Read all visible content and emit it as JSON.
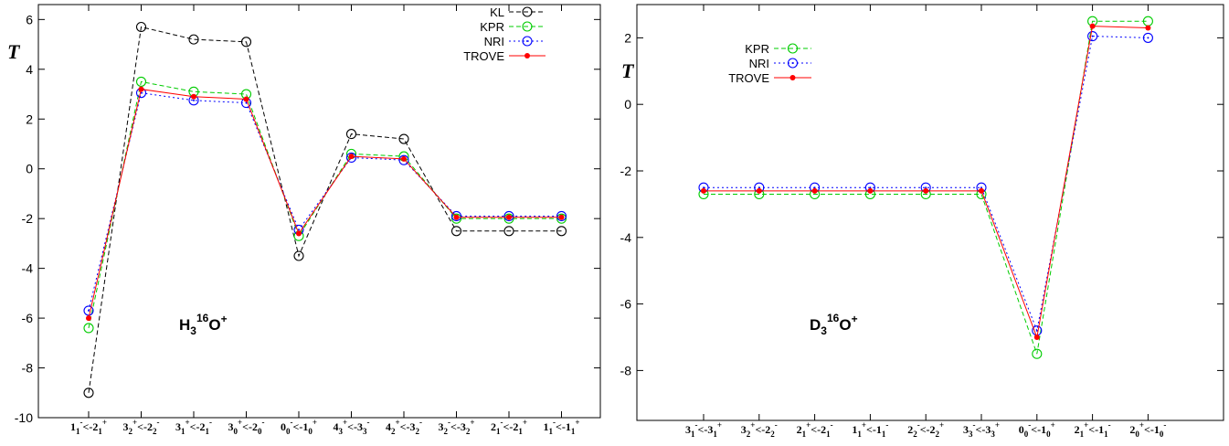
{
  "chart_data": [
    {
      "type": "line",
      "ylabel": "T",
      "annotation": {
        "base": "H",
        "sub": "3",
        "sup": "16",
        "rest": "O",
        "sup2": "+"
      },
      "ylim": [
        -10,
        6.6
      ],
      "yticks": [
        -10,
        -8,
        -6,
        -4,
        -2,
        0,
        2,
        4,
        6
      ],
      "grid": false,
      "legend_position": "top-right",
      "categories": [
        {
          "a": "1",
          "as": "-",
          "ab": "1",
          "mid": "<-",
          "b": "2",
          "bs": "+",
          "bb": "1"
        },
        {
          "a": "3",
          "as": "+",
          "ab": "2",
          "mid": "<-",
          "b": "2",
          "bs": "-",
          "bb": "2"
        },
        {
          "a": "3",
          "as": "+",
          "ab": "1",
          "mid": "<-",
          "b": "2",
          "bs": "-",
          "bb": "1"
        },
        {
          "a": "3",
          "as": "+",
          "ab": "0",
          "mid": "<-",
          "b": "2",
          "bs": "-",
          "bb": "0"
        },
        {
          "a": "0",
          "as": "-",
          "ab": "0",
          "mid": "<-",
          "b": "1",
          "bs": "+",
          "bb": "0"
        },
        {
          "a": "4",
          "as": "+",
          "ab": "3",
          "mid": "<-",
          "b": "3",
          "bs": "-",
          "bb": "3"
        },
        {
          "a": "4",
          "as": "+",
          "ab": "2",
          "mid": "<-",
          "b": "3",
          "bs": "-",
          "bb": "2"
        },
        {
          "a": "3",
          "as": "-",
          "ab": "2",
          "mid": "<-",
          "b": "3",
          "bs": "+",
          "bb": "2"
        },
        {
          "a": "2",
          "as": "-",
          "ab": "1",
          "mid": "<-",
          "b": "2",
          "bs": "+",
          "bb": "1"
        },
        {
          "a": "1",
          "as": "-",
          "ab": "1",
          "mid": "<-",
          "b": "1",
          "bs": "+",
          "bb": "1"
        }
      ],
      "series": [
        {
          "name": "KL",
          "color": "#000000",
          "style": "dashed",
          "marker": "circle",
          "values": [
            -9.0,
            5.7,
            5.2,
            5.1,
            -3.5,
            1.4,
            1.2,
            -2.5,
            -2.5,
            -2.5
          ]
        },
        {
          "name": "KPR",
          "color": "#00cc00",
          "style": "dashed",
          "marker": "circle",
          "values": [
            -6.4,
            3.5,
            3.1,
            3.0,
            -2.7,
            0.6,
            0.5,
            -2.0,
            -2.0,
            -2.0
          ]
        },
        {
          "name": "NRI",
          "color": "#0000ff",
          "style": "dotted",
          "marker": "circle-dot",
          "values": [
            -5.7,
            3.05,
            2.75,
            2.65,
            -2.45,
            0.45,
            0.35,
            -1.9,
            -1.9,
            -1.9
          ]
        },
        {
          "name": "TROVE",
          "color": "#ff0000",
          "style": "solid",
          "marker": "dot",
          "values": [
            -6.0,
            3.2,
            2.9,
            2.8,
            -2.6,
            0.5,
            0.4,
            -1.95,
            -1.95,
            -1.95
          ]
        }
      ]
    },
    {
      "type": "line",
      "ylabel": "T",
      "annotation": {
        "base": "D",
        "sub": "3",
        "sup": "16",
        "rest": "O",
        "sup2": "+"
      },
      "ylim": [
        -9.5,
        3.0
      ],
      "yticks": [
        -8,
        -6,
        -4,
        -2,
        0,
        2
      ],
      "grid": false,
      "legend_position": "top-left",
      "categories": [
        {
          "a": "3",
          "as": "-",
          "ab": "1",
          "mid": "<-",
          "b": "3",
          "bs": "+",
          "bb": "1"
        },
        {
          "a": "3",
          "as": "+",
          "ab": "2",
          "mid": "<-",
          "b": "2",
          "bs": "-",
          "bb": "2"
        },
        {
          "a": "2",
          "as": "+",
          "ab": "1",
          "mid": "<-",
          "b": "2",
          "bs": "-",
          "bb": "1"
        },
        {
          "a": "1",
          "as": "+",
          "ab": "1",
          "mid": "<-",
          "b": "1",
          "bs": "-",
          "bb": "1"
        },
        {
          "a": "2",
          "as": "-",
          "ab": "2",
          "mid": "<-",
          "b": "2",
          "bs": "+",
          "bb": "2"
        },
        {
          "a": "3",
          "as": "-",
          "ab": "3",
          "mid": "<-",
          "b": "3",
          "bs": "+",
          "bb": "3"
        },
        {
          "a": "0",
          "as": "-",
          "ab": "0",
          "mid": "<-",
          "b": "1",
          "bs": "+",
          "bb": "0"
        },
        {
          "a": "2",
          "as": "+",
          "ab": "1",
          "mid": "<-",
          "b": "1",
          "bs": "-",
          "bb": "1"
        },
        {
          "a": "2",
          "as": "+",
          "ab": "0",
          "mid": "<-",
          "b": "1",
          "bs": "-",
          "bb": "0"
        }
      ],
      "series": [
        {
          "name": "KPR",
          "color": "#00cc00",
          "style": "dashed",
          "marker": "circle",
          "values": [
            -2.7,
            -2.7,
            -2.7,
            -2.7,
            -2.7,
            -2.7,
            -7.5,
            2.5,
            2.5
          ]
        },
        {
          "name": "NRI",
          "color": "#0000ff",
          "style": "dotted",
          "marker": "circle-dot",
          "values": [
            -2.5,
            -2.5,
            -2.5,
            -2.5,
            -2.5,
            -2.5,
            -6.8,
            2.05,
            2.0
          ]
        },
        {
          "name": "TROVE",
          "color": "#ff0000",
          "style": "solid",
          "marker": "dot",
          "values": [
            -2.6,
            -2.6,
            -2.6,
            -2.6,
            -2.6,
            -2.6,
            -7.0,
            2.35,
            2.3
          ]
        }
      ]
    }
  ]
}
